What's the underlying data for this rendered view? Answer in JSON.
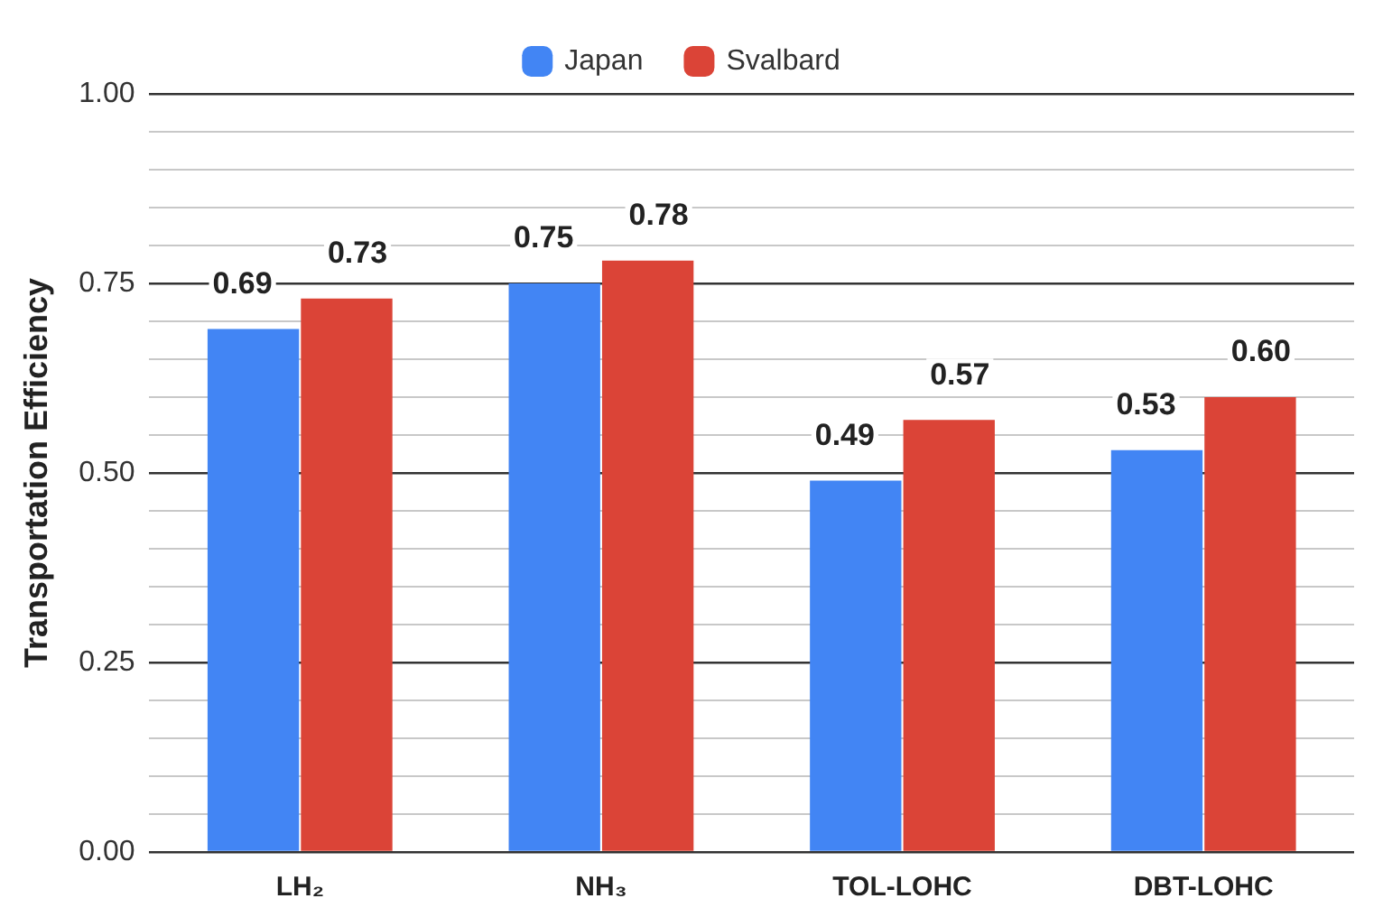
{
  "chart_data": {
    "type": "bar",
    "ylabel": "Transportation Efficiency",
    "categories": [
      "LH₂",
      "NH₃",
      "TOL-LOHC",
      "DBT-LOHC"
    ],
    "series": [
      {
        "name": "Japan",
        "color": "#4285f4",
        "values": [
          0.69,
          0.75,
          0.49,
          0.53
        ],
        "value_labels": [
          "0.69",
          "0.75",
          "0.49",
          "0.53"
        ]
      },
      {
        "name": "Svalbard",
        "color": "#db4437",
        "values": [
          0.73,
          0.78,
          0.57,
          0.6
        ],
        "value_labels": [
          "0.73",
          "0.78",
          "0.57",
          "0.60"
        ]
      }
    ],
    "ylim": [
      0,
      1
    ],
    "yticks": [
      {
        "value": 0,
        "label": "0.00"
      },
      {
        "value": 0.05,
        "label": null
      },
      {
        "value": 0.1,
        "label": null
      },
      {
        "value": 0.15,
        "label": null
      },
      {
        "value": 0.2,
        "label": null
      },
      {
        "value": 0.25,
        "label": "0.25"
      },
      {
        "value": 0.3,
        "label": null
      },
      {
        "value": 0.35,
        "label": null
      },
      {
        "value": 0.4,
        "label": null
      },
      {
        "value": 0.45,
        "label": null
      },
      {
        "value": 0.5,
        "label": "0.50"
      },
      {
        "value": 0.55,
        "label": null
      },
      {
        "value": 0.6,
        "label": null
      },
      {
        "value": 0.65,
        "label": null
      },
      {
        "value": 0.7,
        "label": null
      },
      {
        "value": 0.75,
        "label": "0.75"
      },
      {
        "value": 0.8,
        "label": null
      },
      {
        "value": 0.85,
        "label": null
      },
      {
        "value": 0.9,
        "label": null
      },
      {
        "value": 0.95,
        "label": null
      },
      {
        "value": 1,
        "label": "1.00"
      }
    ],
    "grid": "y",
    "legend": "top"
  }
}
